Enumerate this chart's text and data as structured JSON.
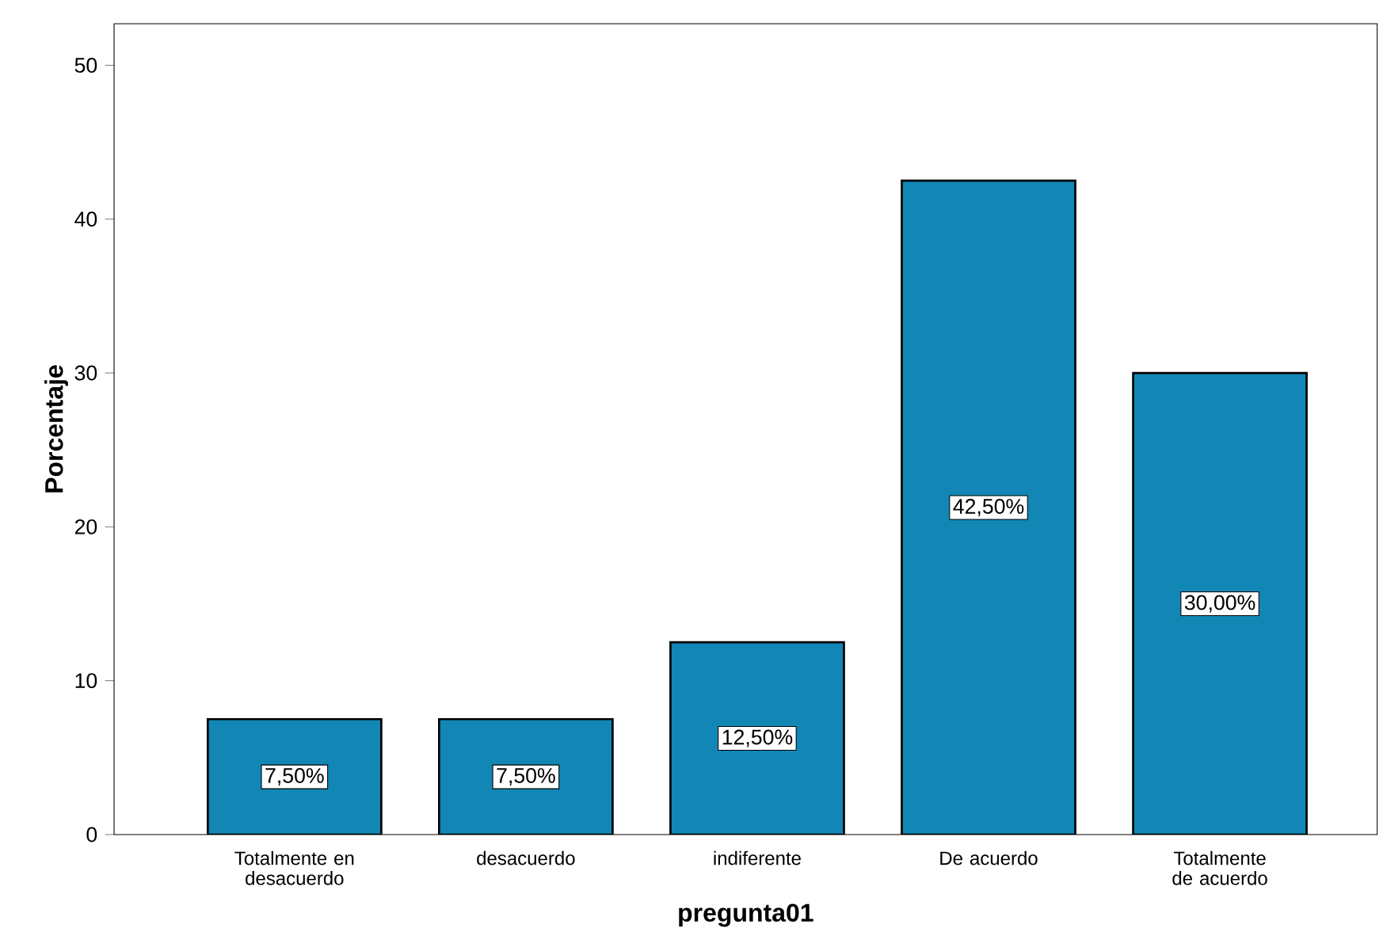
{
  "chart_data": {
    "type": "bar",
    "xlabel": "pregunta01",
    "ylabel": "Porcentaje",
    "categories": [
      "Totalmente en desacuerdo",
      "desacuerdo",
      "indiferente",
      "De acuerdo",
      "Totalmente de acuerdo"
    ],
    "values": [
      7.5,
      7.5,
      12.5,
      42.5,
      30
    ],
    "value_labels": [
      "7,50%",
      "7,50%",
      "12,50%",
      "42,50%",
      "30,00%"
    ],
    "color": "#1287b5",
    "ylim": [
      0,
      52.7
    ],
    "yticks": [
      0,
      10,
      20,
      30,
      40,
      50
    ]
  }
}
